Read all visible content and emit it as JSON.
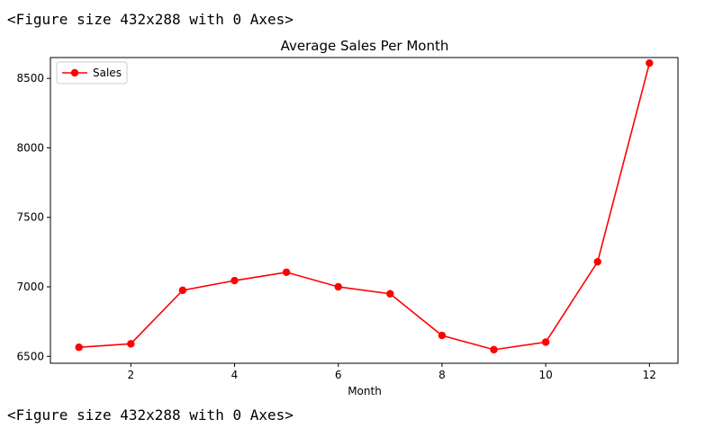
{
  "output": {
    "top_text": "<Figure size 432x288 with 0 Axes>",
    "bottom_text": "<Figure size 432x288 with 0 Axes>"
  },
  "chart_data": {
    "type": "line",
    "title": "Average Sales Per Month",
    "xlabel": "Month",
    "ylabel": "",
    "xlim": [
      0.45,
      12.55
    ],
    "ylim": [
      6450,
      8650
    ],
    "xticks": [
      2,
      4,
      6,
      8,
      10,
      12
    ],
    "yticks": [
      6500,
      7000,
      7500,
      8000,
      8500
    ],
    "grid": false,
    "legend": "upper-left",
    "series": [
      {
        "name": "Sales",
        "color": "#ff0000",
        "marker": "circle",
        "x": [
          1,
          2,
          3,
          4,
          5,
          6,
          7,
          8,
          9,
          10,
          11,
          12
        ],
        "y": [
          6565,
          6590,
          6975,
          7045,
          7105,
          7000,
          6950,
          6650,
          6548,
          6602,
          7180,
          8610
        ]
      }
    ]
  }
}
